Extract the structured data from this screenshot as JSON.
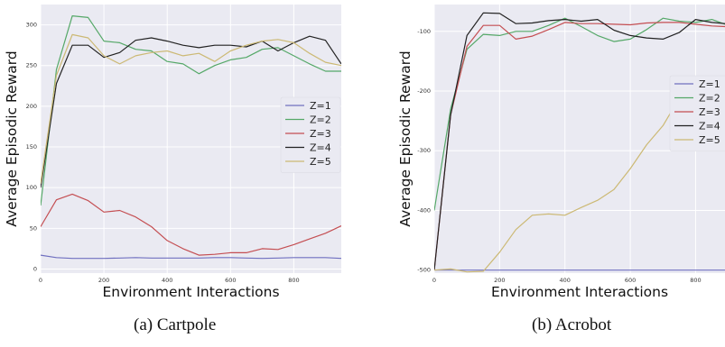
{
  "figure": {
    "captions": [
      "(a) Cartpole",
      "(b) Acrobot"
    ]
  },
  "chart_data": [
    {
      "type": "line",
      "title": "",
      "xlabel": "Environment Interactions",
      "ylabel": "Average Episodic Reward",
      "xlim": [
        0,
        950
      ],
      "ylim": [
        -5,
        325
      ],
      "xticks": [
        0,
        200,
        400,
        600,
        800
      ],
      "yticks": [
        0,
        50,
        100,
        150,
        200,
        250,
        300
      ],
      "grid": true,
      "legend_position": "center-right",
      "series": [
        {
          "name": "Z=1",
          "color": "#7070c0",
          "x": [
            0,
            50,
            100,
            150,
            200,
            250,
            300,
            350,
            400,
            450,
            500,
            550,
            600,
            650,
            700,
            750,
            800,
            850,
            900,
            950
          ],
          "y": [
            17,
            14,
            13,
            13,
            13,
            13.5,
            14,
            13.5,
            13.5,
            13.5,
            13.5,
            14,
            14,
            13.5,
            13,
            13.5,
            14,
            14,
            14,
            13
          ]
        },
        {
          "name": "Z=2",
          "color": "#55a868",
          "x": [
            0,
            50,
            100,
            150,
            200,
            250,
            300,
            350,
            400,
            450,
            500,
            550,
            600,
            650,
            700,
            750,
            800,
            850,
            900,
            950
          ],
          "y": [
            78,
            245,
            311,
            309,
            280,
            278,
            270,
            268,
            255,
            252,
            240,
            250,
            257,
            260,
            270,
            272,
            262,
            252,
            243,
            243
          ]
        },
        {
          "name": "Z=3",
          "color": "#c44e52",
          "x": [
            0,
            50,
            100,
            150,
            200,
            250,
            300,
            350,
            400,
            450,
            500,
            550,
            600,
            650,
            700,
            750,
            800,
            850,
            900,
            950
          ],
          "y": [
            52,
            85,
            92,
            84,
            70,
            72,
            64,
            52,
            35,
            25,
            17,
            18,
            20,
            20,
            25,
            24,
            30,
            37,
            44,
            53
          ]
        },
        {
          "name": "Z=4",
          "color": "#222222",
          "x": [
            0,
            50,
            100,
            150,
            200,
            250,
            300,
            350,
            400,
            450,
            500,
            550,
            600,
            650,
            700,
            750,
            800,
            850,
            900,
            950
          ],
          "y": [
            100,
            228,
            275,
            275,
            260,
            266,
            281,
            284,
            280,
            275,
            272,
            275,
            275,
            273,
            280,
            268,
            278,
            286,
            281,
            252
          ]
        },
        {
          "name": "Z=5",
          "color": "#ccb974",
          "x": [
            0,
            50,
            100,
            150,
            200,
            250,
            300,
            350,
            400,
            450,
            500,
            550,
            600,
            650,
            700,
            750,
            800,
            850,
            900,
            950
          ],
          "y": [
            105,
            238,
            288,
            284,
            262,
            252,
            262,
            266,
            268,
            262,
            265,
            255,
            268,
            275,
            280,
            282,
            278,
            265,
            254,
            250
          ]
        }
      ]
    },
    {
      "type": "line",
      "title": "",
      "xlabel": "Environment Interactions",
      "ylabel": "Average Episodic Reward",
      "xlim": [
        0,
        890
      ],
      "ylim": [
        -505,
        -55
      ],
      "xticks": [
        0,
        200,
        400,
        600,
        800
      ],
      "yticks": [
        -500,
        -400,
        -300,
        -200,
        -100
      ],
      "grid": true,
      "legend_position": "center-right",
      "series": [
        {
          "name": "Z=1",
          "color": "#7070c0",
          "x": [
            0,
            50,
            100,
            150,
            200,
            250,
            300,
            350,
            400,
            450,
            500,
            550,
            600,
            650,
            700,
            750,
            800,
            850,
            890
          ],
          "y": [
            -500,
            -500,
            -500,
            -500,
            -500,
            -500,
            -500,
            -500,
            -500,
            -500,
            -500,
            -500,
            -500,
            -500,
            -500,
            -500,
            -500,
            -500,
            -500
          ]
        },
        {
          "name": "Z=2",
          "color": "#55a868",
          "x": [
            0,
            50,
            100,
            150,
            200,
            250,
            300,
            350,
            400,
            450,
            500,
            550,
            600,
            650,
            700,
            750,
            800,
            850,
            890
          ],
          "y": [
            -400,
            -230,
            -130,
            -105,
            -107,
            -100,
            -100,
            -90,
            -78,
            -92,
            -107,
            -117,
            -113,
            -97,
            -78,
            -83,
            -85,
            -80,
            -88
          ]
        },
        {
          "name": "Z=3",
          "color": "#c44e52",
          "x": [
            0,
            50,
            100,
            150,
            200,
            250,
            300,
            350,
            400,
            450,
            500,
            550,
            600,
            650,
            700,
            750,
            800,
            850,
            890
          ],
          "y": [
            -500,
            -240,
            -125,
            -90,
            -90,
            -113,
            -108,
            -97,
            -85,
            -87,
            -87,
            -88,
            -89,
            -86,
            -85,
            -85,
            -88,
            -91,
            -92
          ]
        },
        {
          "name": "Z=4",
          "color": "#222222",
          "x": [
            0,
            50,
            100,
            150,
            200,
            250,
            300,
            350,
            400,
            450,
            500,
            550,
            600,
            650,
            700,
            750,
            800,
            850,
            890
          ],
          "y": [
            -500,
            -240,
            -107,
            -69,
            -70,
            -87,
            -86,
            -82,
            -80,
            -83,
            -80,
            -98,
            -107,
            -111,
            -113,
            -102,
            -80,
            -85,
            -87
          ]
        },
        {
          "name": "Z=5",
          "color": "#ccb974",
          "x": [
            0,
            50,
            100,
            150,
            200,
            250,
            300,
            350,
            400,
            450,
            500,
            550,
            600,
            650,
            700,
            750,
            800,
            850,
            890
          ],
          "y": [
            -500,
            -498,
            -503,
            -502,
            -470,
            -432,
            -408,
            -406,
            -408,
            -395,
            -383,
            -365,
            -330,
            -290,
            -258,
            -212,
            -210,
            -205,
            -190
          ]
        }
      ]
    }
  ]
}
